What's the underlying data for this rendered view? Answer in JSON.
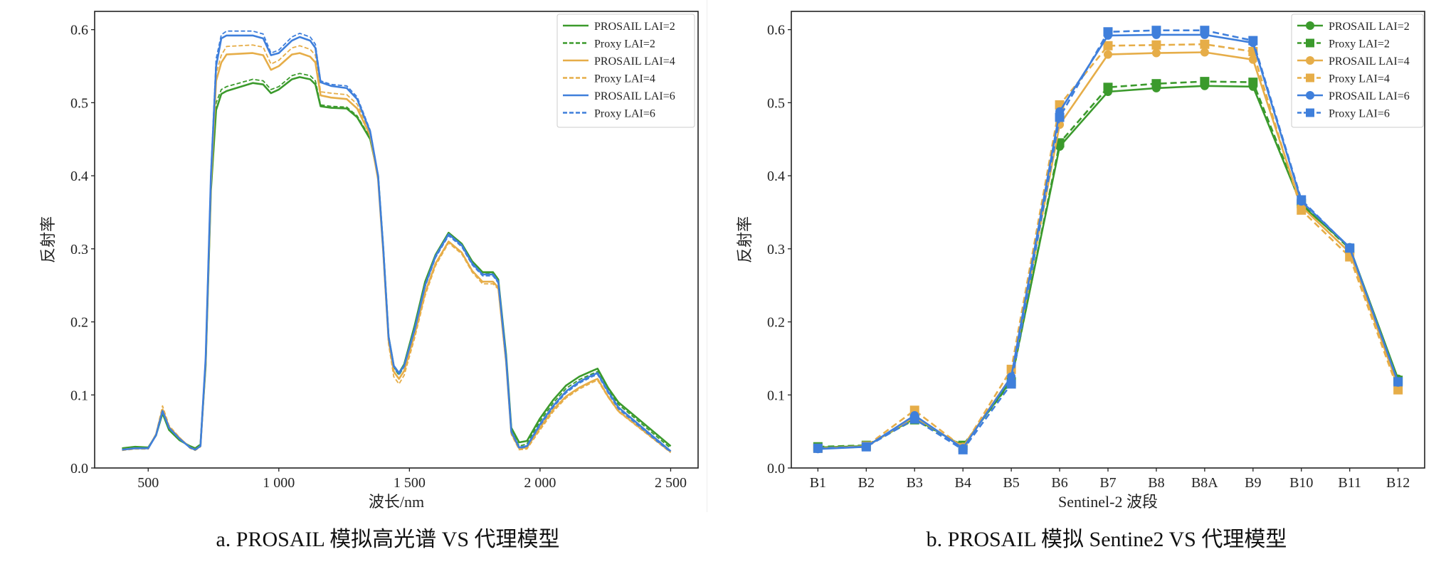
{
  "captions": {
    "left": "a. PROSAIL 模拟高光谱 VS 代理模型",
    "right": "b. PROSAIL 模拟 Sentine2 VS 代理模型"
  },
  "colors": {
    "green": "#3b9a2c",
    "orange": "#e6ad48",
    "blue": "#3f7fdb"
  },
  "chart_data": [
    {
      "type": "line",
      "title": "",
      "xlabel": "波长/nm",
      "ylabel": "反射率",
      "xlim": [
        295,
        2605
      ],
      "ylim": [
        0,
        0.625
      ],
      "xticks": [
        500,
        1000,
        1500,
        2000,
        2500
      ],
      "xtick_labels": [
        "500",
        "1 000",
        "1 500",
        "2 000",
        "2 500"
      ],
      "yticks": [
        0.0,
        0.1,
        0.2,
        0.3,
        0.4,
        0.5,
        0.6
      ],
      "ytick_labels": [
        "0.0",
        "0.1",
        "0.2",
        "0.3",
        "0.4",
        "0.5",
        "0.6"
      ],
      "legend_position": "top-right",
      "grid": false,
      "x": [
        400,
        450,
        500,
        530,
        555,
        580,
        620,
        660,
        680,
        700,
        720,
        740,
        760,
        780,
        800,
        900,
        940,
        970,
        1000,
        1050,
        1080,
        1120,
        1140,
        1160,
        1200,
        1260,
        1300,
        1350,
        1380,
        1400,
        1420,
        1440,
        1460,
        1480,
        1520,
        1560,
        1600,
        1650,
        1700,
        1740,
        1780,
        1820,
        1840,
        1870,
        1890,
        1920,
        1950,
        2000,
        2050,
        2100,
        2150,
        2200,
        2220,
        2260,
        2300,
        2350,
        2400,
        2450,
        2500
      ],
      "series": [
        {
          "name": "PROSAIL LAI=2",
          "color": "green",
          "style": "solid",
          "values": [
            0.027,
            0.029,
            0.028,
            0.045,
            0.075,
            0.052,
            0.038,
            0.03,
            0.027,
            0.032,
            0.14,
            0.38,
            0.49,
            0.512,
            0.516,
            0.527,
            0.525,
            0.513,
            0.518,
            0.532,
            0.535,
            0.532,
            0.525,
            0.495,
            0.493,
            0.492,
            0.48,
            0.45,
            0.4,
            0.3,
            0.18,
            0.14,
            0.13,
            0.142,
            0.195,
            0.255,
            0.292,
            0.322,
            0.307,
            0.283,
            0.268,
            0.268,
            0.258,
            0.155,
            0.055,
            0.035,
            0.037,
            0.068,
            0.093,
            0.113,
            0.125,
            0.133,
            0.136,
            0.11,
            0.09,
            0.075,
            0.06,
            0.045,
            0.03
          ]
        },
        {
          "name": "Proxy LAI=2",
          "color": "green",
          "style": "dashed",
          "values": [
            0.026,
            0.028,
            0.028,
            0.044,
            0.074,
            0.053,
            0.039,
            0.029,
            0.026,
            0.031,
            0.14,
            0.385,
            0.5,
            0.518,
            0.522,
            0.532,
            0.53,
            0.518,
            0.522,
            0.537,
            0.54,
            0.537,
            0.53,
            0.497,
            0.495,
            0.494,
            0.482,
            0.452,
            0.4,
            0.3,
            0.178,
            0.137,
            0.127,
            0.139,
            0.192,
            0.252,
            0.29,
            0.32,
            0.305,
            0.281,
            0.266,
            0.266,
            0.256,
            0.152,
            0.052,
            0.03,
            0.033,
            0.064,
            0.089,
            0.109,
            0.121,
            0.129,
            0.132,
            0.107,
            0.087,
            0.072,
            0.057,
            0.042,
            0.027
          ]
        },
        {
          "name": "PROSAIL LAI=4",
          "color": "orange",
          "style": "solid",
          "values": [
            0.025,
            0.027,
            0.027,
            0.046,
            0.08,
            0.056,
            0.041,
            0.028,
            0.025,
            0.03,
            0.145,
            0.39,
            0.53,
            0.555,
            0.566,
            0.568,
            0.565,
            0.545,
            0.55,
            0.566,
            0.568,
            0.563,
            0.555,
            0.51,
            0.507,
            0.505,
            0.492,
            0.455,
            0.395,
            0.295,
            0.175,
            0.132,
            0.122,
            0.133,
            0.183,
            0.24,
            0.28,
            0.31,
            0.295,
            0.27,
            0.255,
            0.255,
            0.247,
            0.145,
            0.048,
            0.027,
            0.028,
            0.055,
            0.08,
            0.098,
            0.11,
            0.119,
            0.122,
            0.098,
            0.078,
            0.064,
            0.05,
            0.036,
            0.022
          ]
        },
        {
          "name": "Proxy LAI=4",
          "color": "orange",
          "style": "dashed",
          "values": [
            0.024,
            0.026,
            0.026,
            0.047,
            0.085,
            0.058,
            0.042,
            0.027,
            0.024,
            0.029,
            0.148,
            0.395,
            0.54,
            0.565,
            0.577,
            0.579,
            0.576,
            0.553,
            0.558,
            0.575,
            0.578,
            0.573,
            0.565,
            0.515,
            0.513,
            0.511,
            0.498,
            0.458,
            0.395,
            0.29,
            0.17,
            0.125,
            0.115,
            0.127,
            0.178,
            0.236,
            0.277,
            0.308,
            0.293,
            0.268,
            0.252,
            0.252,
            0.245,
            0.142,
            0.046,
            0.025,
            0.026,
            0.052,
            0.077,
            0.096,
            0.108,
            0.117,
            0.12,
            0.097,
            0.077,
            0.063,
            0.049,
            0.035,
            0.021
          ]
        },
        {
          "name": "PROSAIL LAI=6",
          "color": "blue",
          "style": "solid",
          "values": [
            0.025,
            0.027,
            0.027,
            0.045,
            0.078,
            0.055,
            0.04,
            0.028,
            0.025,
            0.03,
            0.15,
            0.4,
            0.55,
            0.588,
            0.592,
            0.592,
            0.588,
            0.565,
            0.568,
            0.585,
            0.59,
            0.585,
            0.575,
            0.528,
            0.523,
            0.52,
            0.505,
            0.46,
            0.4,
            0.3,
            0.18,
            0.14,
            0.13,
            0.14,
            0.19,
            0.25,
            0.29,
            0.32,
            0.305,
            0.28,
            0.265,
            0.265,
            0.255,
            0.15,
            0.05,
            0.028,
            0.03,
            0.06,
            0.085,
            0.105,
            0.118,
            0.127,
            0.13,
            0.105,
            0.083,
            0.068,
            0.053,
            0.038,
            0.023
          ]
        },
        {
          "name": "Proxy LAI=6",
          "color": "blue",
          "style": "dashed",
          "values": [
            0.025,
            0.027,
            0.027,
            0.045,
            0.077,
            0.055,
            0.04,
            0.028,
            0.025,
            0.03,
            0.152,
            0.405,
            0.56,
            0.593,
            0.598,
            0.598,
            0.594,
            0.568,
            0.572,
            0.59,
            0.595,
            0.59,
            0.58,
            0.53,
            0.525,
            0.523,
            0.508,
            0.462,
            0.4,
            0.3,
            0.178,
            0.138,
            0.128,
            0.139,
            0.188,
            0.248,
            0.288,
            0.318,
            0.303,
            0.278,
            0.263,
            0.263,
            0.253,
            0.148,
            0.049,
            0.027,
            0.029,
            0.058,
            0.083,
            0.103,
            0.116,
            0.125,
            0.128,
            0.103,
            0.081,
            0.066,
            0.051,
            0.036,
            0.022
          ]
        }
      ]
    },
    {
      "type": "line",
      "title": "",
      "xlabel": "Sentinel-2 波段",
      "ylabel": "反射率",
      "categories": [
        "B1",
        "B2",
        "B3",
        "B4",
        "B5",
        "B6",
        "B7",
        "B8",
        "B8A",
        "B9",
        "B10",
        "B11",
        "B12"
      ],
      "ylim": [
        0,
        0.625
      ],
      "yticks": [
        0.0,
        0.1,
        0.2,
        0.3,
        0.4,
        0.5,
        0.6
      ],
      "ytick_labels": [
        "0.0",
        "0.1",
        "0.2",
        "0.3",
        "0.4",
        "0.5",
        "0.6"
      ],
      "legend_position": "top-right",
      "grid": false,
      "series": [
        {
          "name": "PROSAIL LAI=2",
          "color": "green",
          "style": "solid",
          "marker": "circle",
          "values": [
            0.028,
            0.03,
            0.068,
            0.03,
            0.12,
            0.44,
            0.515,
            0.52,
            0.523,
            0.522,
            0.36,
            0.302,
            0.122
          ]
        },
        {
          "name": "Proxy LAI=2",
          "color": "green",
          "style": "dashed",
          "marker": "square",
          "values": [
            0.029,
            0.031,
            0.066,
            0.031,
            0.118,
            0.445,
            0.521,
            0.526,
            0.529,
            0.528,
            0.362,
            0.3,
            0.12
          ]
        },
        {
          "name": "PROSAIL LAI=4",
          "color": "orange",
          "style": "solid",
          "marker": "circle",
          "values": [
            0.027,
            0.029,
            0.07,
            0.029,
            0.125,
            0.47,
            0.566,
            0.568,
            0.569,
            0.559,
            0.358,
            0.295,
            0.112
          ]
        },
        {
          "name": "Proxy LAI=4",
          "color": "orange",
          "style": "dashed",
          "marker": "square",
          "values": [
            0.027,
            0.03,
            0.079,
            0.028,
            0.135,
            0.497,
            0.578,
            0.579,
            0.58,
            0.57,
            0.353,
            0.289,
            0.107
          ]
        },
        {
          "name": "PROSAIL LAI=6",
          "color": "blue",
          "style": "solid",
          "marker": "circle",
          "values": [
            0.026,
            0.029,
            0.072,
            0.027,
            0.125,
            0.488,
            0.592,
            0.593,
            0.593,
            0.582,
            0.365,
            0.302,
            0.117
          ]
        },
        {
          "name": "Proxy LAI=6",
          "color": "blue",
          "style": "dashed",
          "marker": "square",
          "values": [
            0.027,
            0.029,
            0.067,
            0.025,
            0.115,
            0.48,
            0.597,
            0.599,
            0.599,
            0.585,
            0.367,
            0.301,
            0.118
          ]
        }
      ]
    }
  ]
}
